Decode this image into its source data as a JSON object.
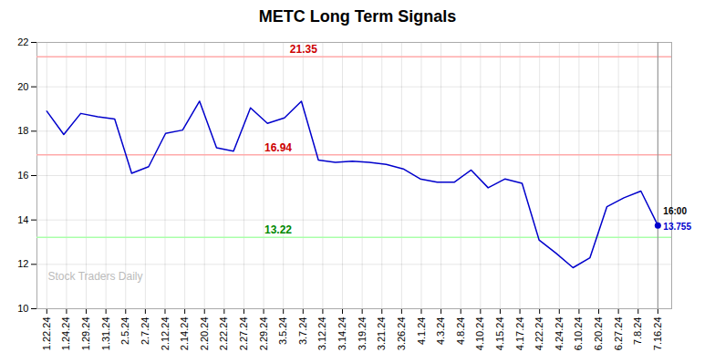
{
  "chart_data": {
    "type": "line",
    "title": "METC Long Term Signals",
    "x": [
      0,
      0.861111111111111,
      1.72222222222222,
      2.58333333333333,
      3.44444444444444,
      4.30555555555556,
      5.16666666666667,
      6.02777777777778,
      6.88888888888889,
      7.75,
      8.61111111111111,
      9.47222222222222,
      10.3333333333333,
      11.1944444444444,
      12.0555555555556,
      12.9166666666667,
      13.7777777777778,
      14.6388888888889,
      15.5,
      16.3611111111111,
      17.2222222222222,
      18.0833333333333,
      18.9444444444444,
      19.8055555555556,
      20.6666666666667,
      21.5277777777778,
      22.3888888888889,
      23.25,
      24.1111111111111,
      24.9722222222222,
      25.8333333333333,
      26.6944444444444,
      27.5555555555556,
      28.4166666666667,
      29.2777777777778,
      30.1388888888889,
      31
    ],
    "values": [
      18.9,
      17.85,
      18.8,
      18.65,
      18.55,
      16.1,
      16.4,
      17.9,
      18.05,
      19.35,
      17.25,
      17.1,
      19.05,
      18.35,
      18.6,
      19.35,
      16.7,
      16.6,
      16.65,
      16.6,
      16.5,
      16.3,
      15.85,
      15.7,
      15.7,
      16.25,
      15.45,
      15.85,
      15.65,
      13.1,
      12.5,
      11.85,
      12.3,
      14.6,
      15.0,
      15.3,
      13.755
    ],
    "color": "#0000cc",
    "xlim": [
      -0.5,
      31.7
    ],
    "xticks": [
      {
        "value": 0,
        "label": "1.22.24"
      },
      {
        "value": 1,
        "label": "1.24.24"
      },
      {
        "value": 2,
        "label": "1.29.24"
      },
      {
        "value": 3,
        "label": "1.31.24"
      },
      {
        "value": 4,
        "label": "2.5.24"
      },
      {
        "value": 5,
        "label": "2.7.24"
      },
      {
        "value": 6,
        "label": "2.12.24"
      },
      {
        "value": 7,
        "label": "2.14.24"
      },
      {
        "value": 8,
        "label": "2.20.24"
      },
      {
        "value": 9,
        "label": "2.22.24"
      },
      {
        "value": 10,
        "label": "2.27.24"
      },
      {
        "value": 11,
        "label": "2.29.24"
      },
      {
        "value": 12,
        "label": "3.5.24"
      },
      {
        "value": 13,
        "label": "3.7.24"
      },
      {
        "value": 14,
        "label": "3.12.24"
      },
      {
        "value": 15,
        "label": "3.14.24"
      },
      {
        "value": 16,
        "label": "3.19.24"
      },
      {
        "value": 17,
        "label": "3.21.24"
      },
      {
        "value": 18,
        "label": "3.26.24"
      },
      {
        "value": 19,
        "label": "4.1.24"
      },
      {
        "value": 20,
        "label": "4.3.24"
      },
      {
        "value": 21,
        "label": "4.8.24"
      },
      {
        "value": 22,
        "label": "4.10.24"
      },
      {
        "value": 23,
        "label": "4.15.24"
      },
      {
        "value": 24,
        "label": "4.17.24"
      },
      {
        "value": 25,
        "label": "4.22.24"
      },
      {
        "value": 26,
        "label": "4.24.24"
      },
      {
        "value": 27,
        "label": "6.10.24"
      },
      {
        "value": 28,
        "label": "6.20.24"
      },
      {
        "value": 29,
        "label": "6.27.24"
      },
      {
        "value": 30,
        "label": "7.8.24"
      },
      {
        "value": 31,
        "label": "7.16.24"
      }
    ],
    "ylim": [
      10,
      22
    ],
    "yticks": [
      10,
      12,
      14,
      16,
      18,
      20,
      22
    ],
    "grid": true,
    "reference_lines": [
      {
        "y": 21.35,
        "color": "#ffaaaa",
        "label": "21.35",
        "label_color": "#cc0000"
      },
      {
        "y": 16.94,
        "color": "#ffaaaa",
        "label": "16.94",
        "label_color": "#cc0000"
      },
      {
        "y": 13.22,
        "color": "#aaffaa",
        "label": "13.22",
        "label_color": "#008800"
      }
    ],
    "vline": {
      "x": 31,
      "color": "#999999"
    },
    "last_point": {
      "x": 31,
      "y": 13.755,
      "time": "16:00",
      "label": "13.755",
      "color": "#0000cc"
    },
    "watermark": {
      "text": "Stock Traders Daily",
      "color": "#bbbbbb"
    }
  }
}
